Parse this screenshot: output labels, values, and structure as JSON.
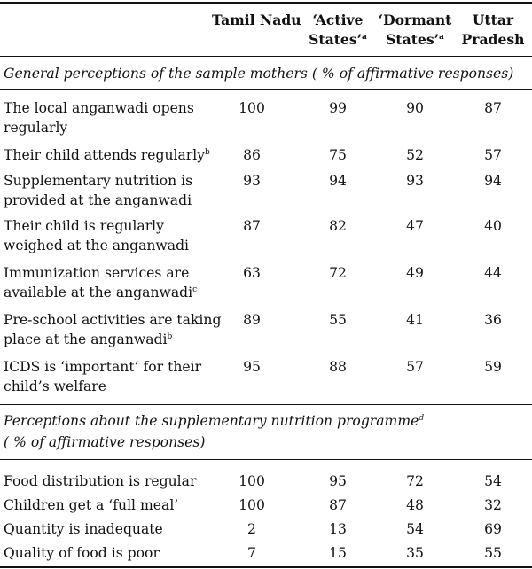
{
  "columns": {
    "tamil_nadu": "Tamil Nadu",
    "active_line1": "‘Active",
    "active_line2": "States’",
    "active_sup": "a",
    "dormant_line1": "‘Dormant",
    "dormant_line2": "States’",
    "dormant_sup": "a",
    "up_line1": "Uttar",
    "up_line2": "Pradesh"
  },
  "section1": {
    "title": "General perceptions of the sample mothers ( % of affirmative responses)",
    "rows": [
      {
        "line1": "The local anganwadi opens",
        "line2": "regularly",
        "sup": "",
        "values": [
          "100",
          "99",
          "90",
          "87"
        ]
      },
      {
        "line1": "Their child attends regularly",
        "line2": "",
        "sup": "b",
        "values": [
          "86",
          "75",
          "52",
          "57"
        ]
      },
      {
        "line1": "Supplementary nutrition is",
        "line2": "provided at the anganwadi",
        "sup": "",
        "values": [
          "93",
          "94",
          "93",
          "94"
        ]
      },
      {
        "line1": "Their child is regularly",
        "line2": "weighed at the anganwadi",
        "sup": "",
        "values": [
          "87",
          "82",
          "47",
          "40"
        ]
      },
      {
        "line1": "Immunization services are",
        "line2": "available at the anganwadi",
        "sup": "c",
        "values": [
          "63",
          "72",
          "49",
          "44"
        ]
      },
      {
        "line1": "Pre-school activities are taking",
        "line2": "place at the anganwadi",
        "sup": "b",
        "values": [
          "89",
          "55",
          "41",
          "36"
        ]
      },
      {
        "line1": "ICDS is ‘important’ for their",
        "line2": "child’s welfare",
        "sup": "",
        "values": [
          "95",
          "88",
          "57",
          "59"
        ]
      }
    ]
  },
  "section2": {
    "title_line1": "Perceptions about the supplementary nutrition programme",
    "title_sup": "d",
    "title_line2": "( % of affirmative responses)",
    "rows": [
      {
        "line1": "Food distribution is regular",
        "values": [
          "100",
          "95",
          "72",
          "54"
        ]
      },
      {
        "line1": "Children get a ‘full meal’",
        "values": [
          "100",
          "87",
          "48",
          "32"
        ]
      },
      {
        "line1": "Quantity is inadequate",
        "values": [
          "2",
          "13",
          "54",
          "69"
        ]
      },
      {
        "line1": "Quality of food is poor",
        "values": [
          "7",
          "15",
          "35",
          "55"
        ]
      }
    ]
  }
}
